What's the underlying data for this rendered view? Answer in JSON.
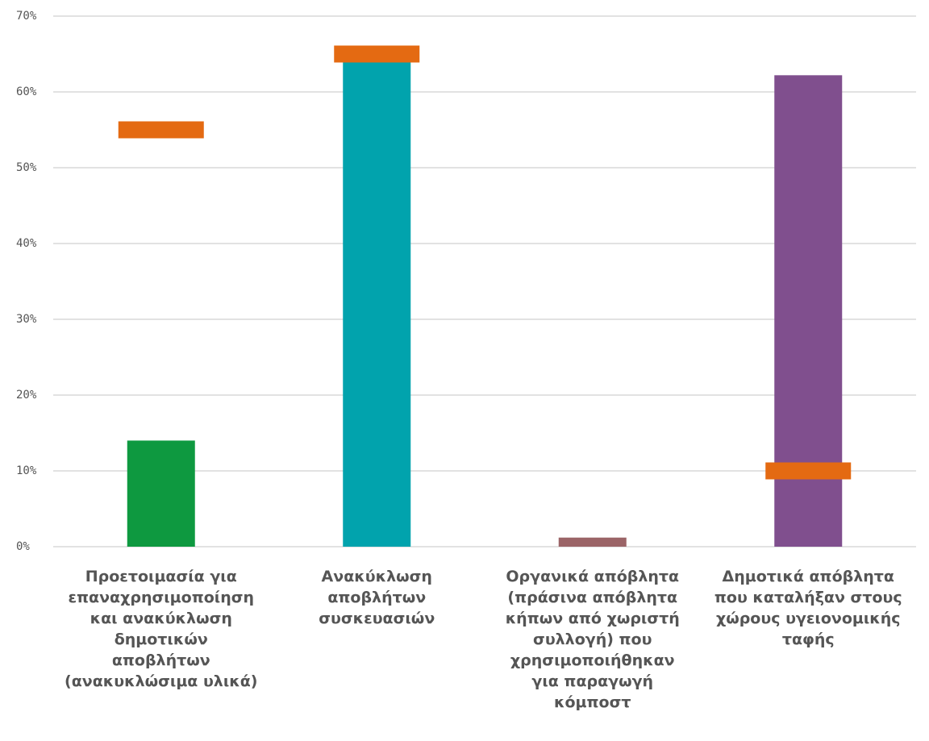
{
  "chart_data": {
    "type": "bar",
    "categories": [
      "Προετοιμασία για επαναχρησιμοποίηση και ανακύκλωση δημοτικών αποβλήτων (ανακυκλώσιμα υλικά)",
      "Ανακύκλωση αποβλήτων συσκευασιών",
      "Οργανικά απόβλητα (πράσινα απόβλητα κήπων από χωριστή συλλογή) που χρησιμοποιήθηκαν για παραγωγή κόμποστ",
      "Δημοτικά απόβλητα που καταλήξαν στους χώρους υγειονομικής ταφής"
    ],
    "category_lines": [
      [
        "Προετοιμασία για",
        "επαναχρησιμοποίηση",
        "και ανακύκλωση",
        "δημοτικών",
        "αποβλήτων",
        "(ανακυκλώσιμα υλικά)"
      ],
      [
        "Ανακύκλωση",
        "αποβλήτων",
        "συσκευασιών"
      ],
      [
        "Οργανικά απόβλητα",
        "(πράσινα απόβλητα",
        "κήπων από χωριστή",
        "συλλογή) που",
        "χρησιμοποιήθηκαν",
        "για παραγωγή",
        "κόμποστ"
      ],
      [
        "Δημοτικά απόβλητα",
        "που καταλήξαν στους",
        "χώρους υγειονομικής",
        "ταφής"
      ]
    ],
    "series": [
      {
        "values": [
          14,
          64,
          1.2,
          62.2
        ],
        "colors": [
          "#0e9940",
          "#01a3ad",
          "#9b6467",
          "#804f8e"
        ]
      },
      {
        "values": [
          55,
          65,
          null,
          10
        ],
        "color": "#e46a12",
        "style": "marker"
      }
    ],
    "yticks": [
      "0%",
      "10%",
      "20%",
      "30%",
      "40%",
      "50%",
      "60%",
      "70%"
    ],
    "ylim": [
      0,
      70
    ],
    "grid": true,
    "colors": {
      "grid": "#d9d9d9",
      "text": "#555555"
    }
  }
}
